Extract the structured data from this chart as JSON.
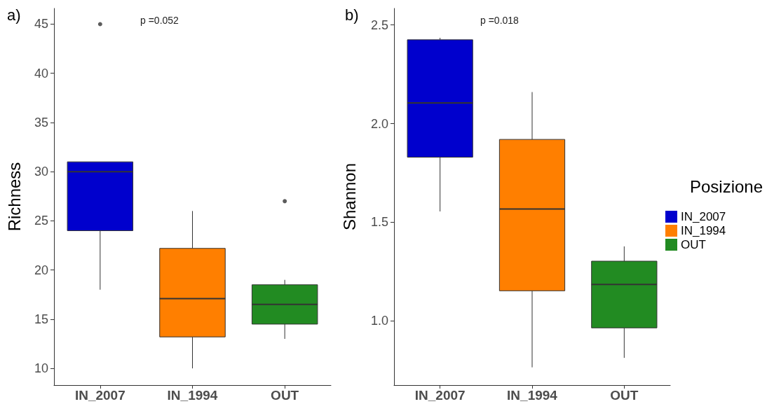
{
  "chart_data": [
    {
      "type": "box",
      "title": "a)",
      "ylabel": "Richness",
      "categories": [
        "IN_2007",
        "IN_1994",
        "OUT"
      ],
      "colors": [
        "#0000cd",
        "#ff7f00",
        "#228b22"
      ],
      "boxes": [
        {
          "low": 18,
          "q1": 24,
          "median": 30,
          "q3": 31,
          "high": 31,
          "outliers": [
            45
          ]
        },
        {
          "low": 10,
          "q1": 13.2,
          "median": 17.1,
          "q3": 22.2,
          "high": 26
        },
        {
          "low": 13,
          "q1": 14.5,
          "median": 16.5,
          "q3": 18.5,
          "high": 19,
          "outliers": [
            27
          ]
        }
      ],
      "ylim": [
        8.3,
        46.6
      ],
      "yticks": [
        10,
        15,
        20,
        25,
        30,
        35,
        40,
        45
      ],
      "grid": false,
      "legend": false,
      "annotations": [
        "p =0.052"
      ]
    },
    {
      "type": "box",
      "title": "b)",
      "ylabel": "Shannon",
      "legend_title": "Posizione",
      "categories": [
        "IN_2007",
        "IN_1994",
        "OUT"
      ],
      "series": [
        {
          "name": "IN_2007",
          "color": "#0000cd",
          "boxes": [
            {
              "low": 1.555,
              "q1": 1.83,
              "median": 2.105,
              "q3": 2.425,
              "high": 2.435
            },
            null,
            null
          ]
        },
        {
          "name": "IN_1994",
          "color": "#ff7f00",
          "boxes": [
            null,
            {
              "low": 0.765,
              "q1": 1.153,
              "median": 1.567,
              "q3": 1.92,
              "high": 2.16
            },
            null
          ]
        },
        {
          "name": "OUT",
          "color": "#228b22",
          "boxes": [
            null,
            null,
            {
              "low": 0.813,
              "q1": 0.965,
              "median": 1.185,
              "q3": 1.303,
              "high": 1.378
            }
          ]
        }
      ],
      "ylim": [
        0.675,
        2.584
      ],
      "yticks": [
        {
          "value": 1,
          "label": "1.0"
        },
        1.5,
        {
          "value": 2,
          "label": "2.0"
        },
        2.5
      ],
      "grid": false,
      "legend": "right",
      "annotations": [
        "p =0.018"
      ]
    }
  ]
}
